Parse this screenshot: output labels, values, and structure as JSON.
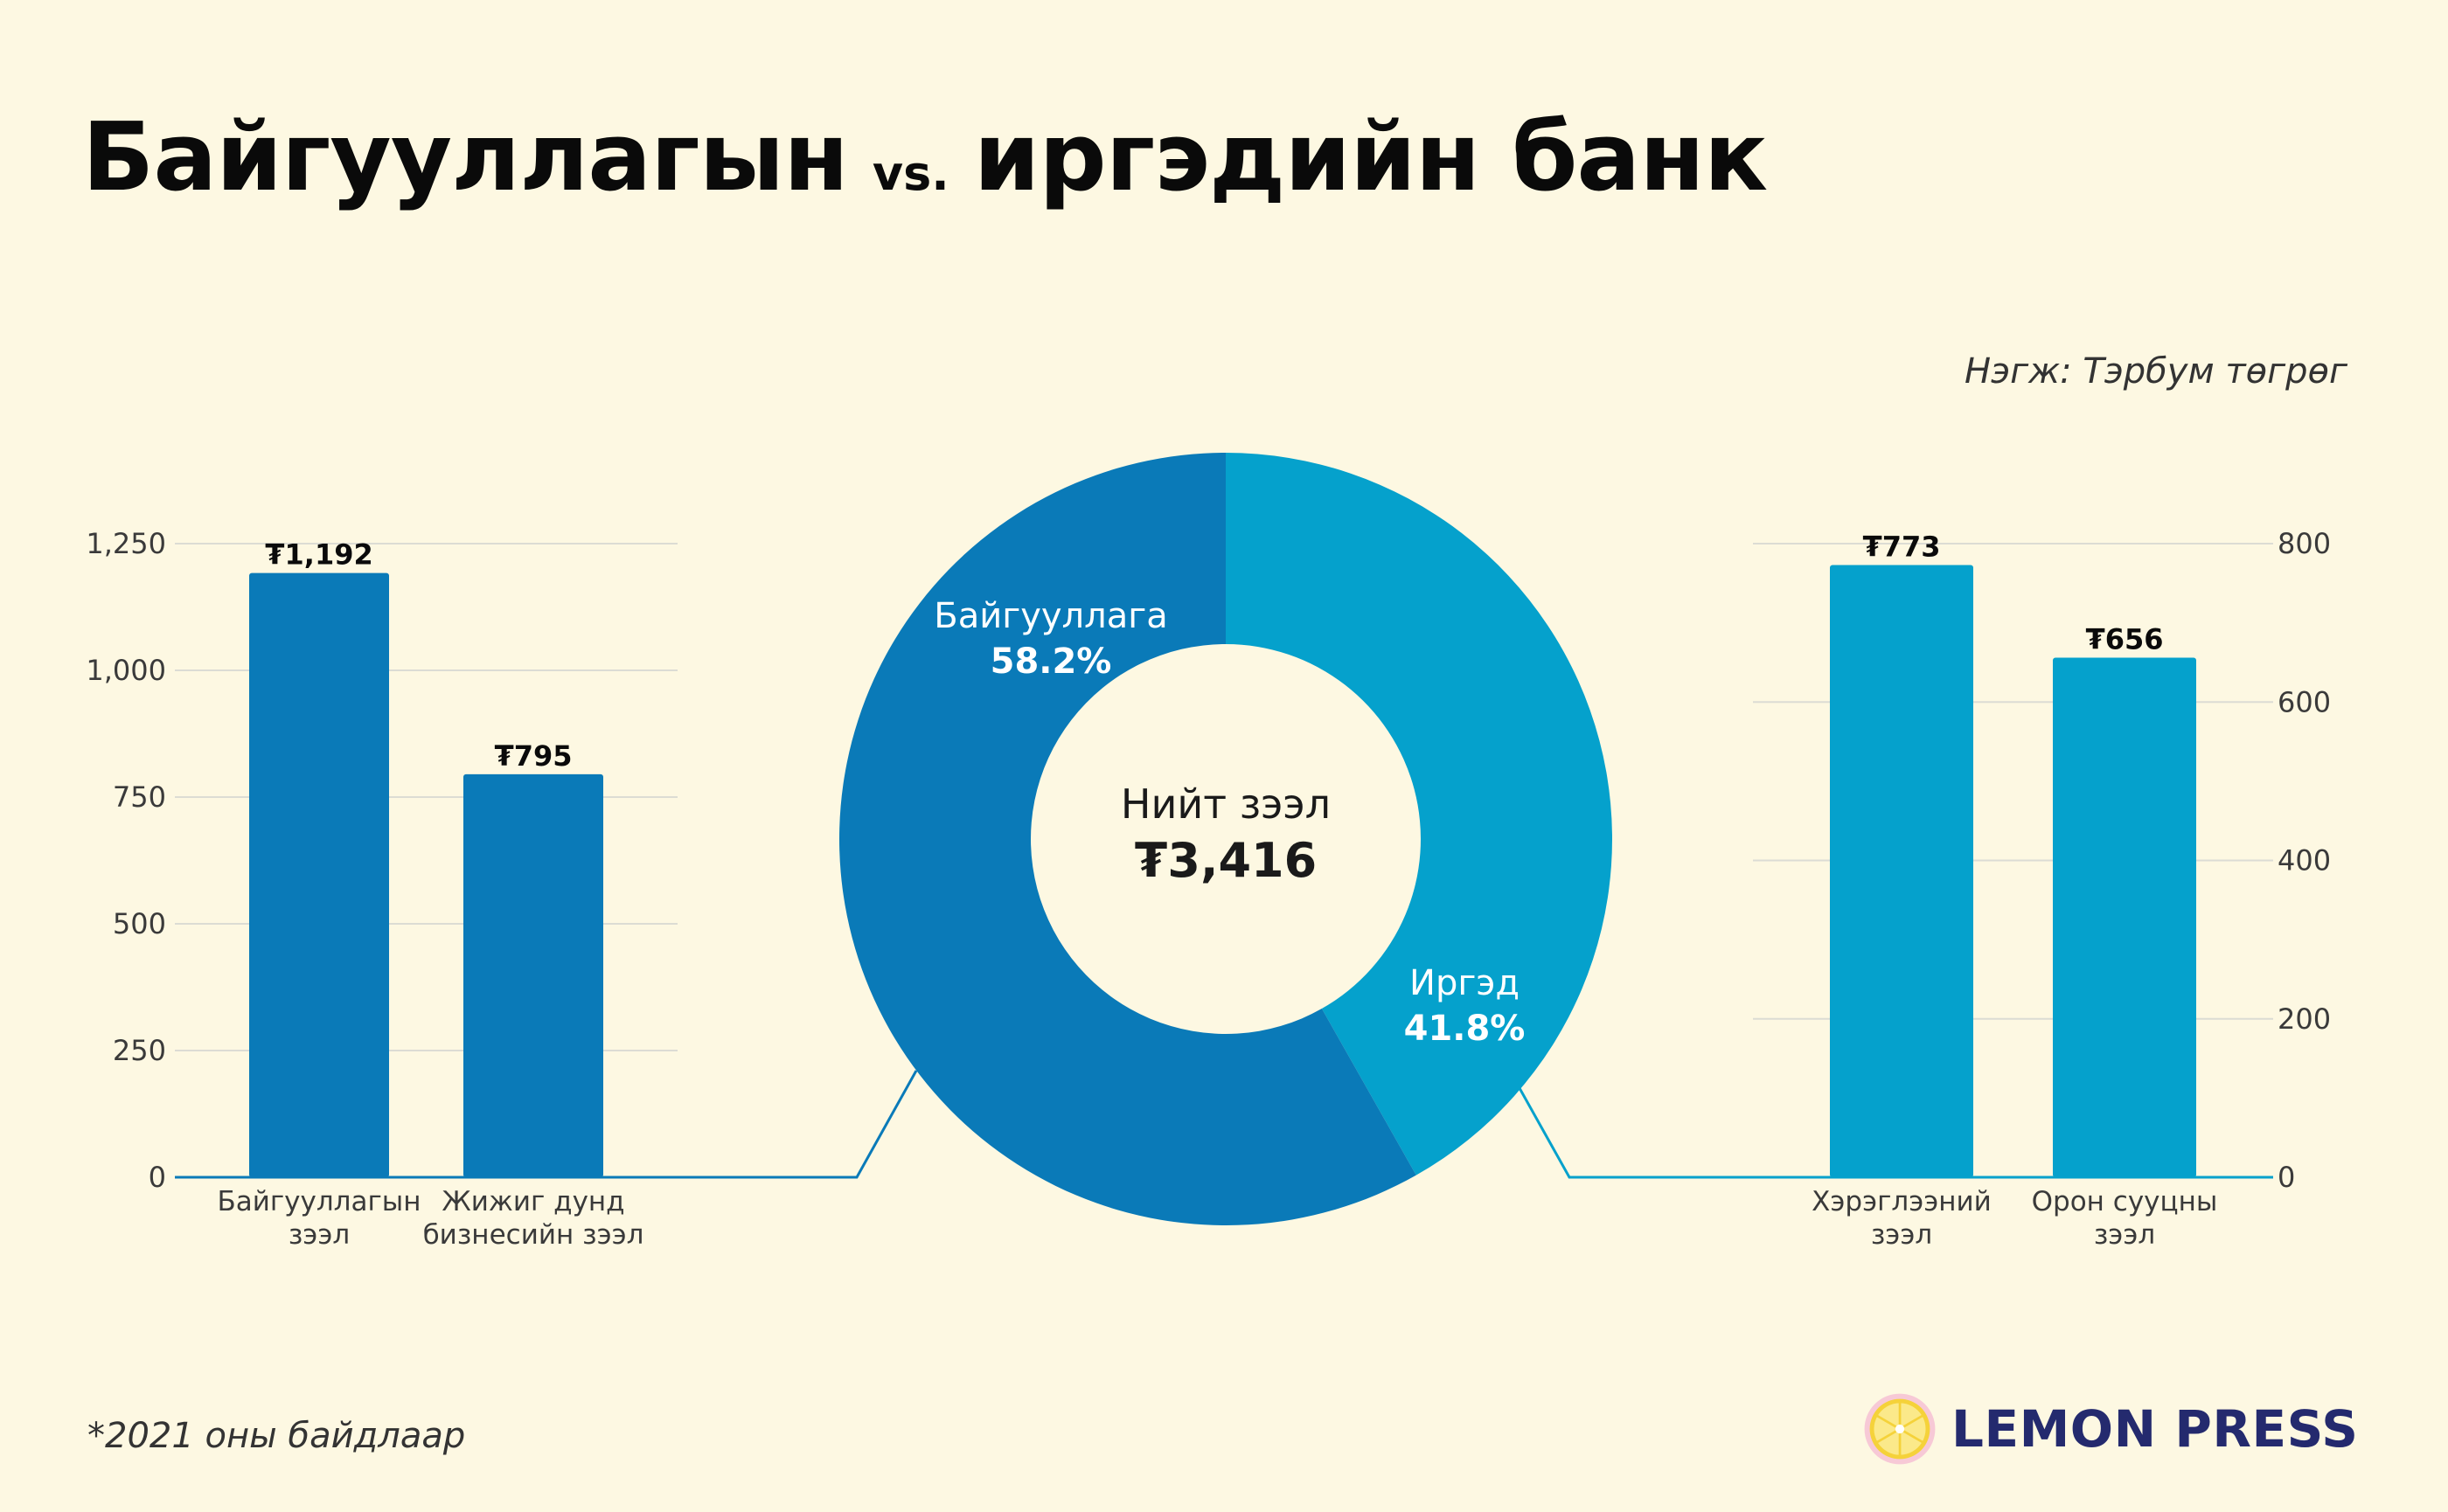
{
  "title": {
    "part1": "Байгууллагын",
    "vs": "vs.",
    "part2": "иргэдийн банк"
  },
  "unit_note": "Нэгж: Тэрбум төгрөг",
  "footnote": "*2021 оны байдлаар",
  "brand": {
    "name": "LEMON PRESS",
    "logo_icon": "lemon-slice-icon"
  },
  "colors": {
    "background": "#fdf8e2",
    "corporate": "#0a7ab8",
    "individual": "#05a1cc",
    "gridline": "#dcdcd4",
    "brand_text": "#242a6e"
  },
  "chart_data": [
    {
      "type": "bar",
      "id": "corporate",
      "categories": [
        [
          "Байгууллагын",
          "зээл"
        ],
        [
          "Жижиг дунд",
          "бизнесийн зээл"
        ]
      ],
      "values": [
        1192,
        795
      ],
      "value_labels": [
        "₮1,192",
        "₮795"
      ],
      "yticks": [
        "0",
        "250",
        "500",
        "750",
        "1,000",
        "1,250"
      ],
      "ylim": [
        0,
        1250
      ],
      "axis_side": "left",
      "color": "#0a7ab8",
      "grid": true
    },
    {
      "type": "pie",
      "id": "total",
      "style": "donut",
      "center_label": "Нийт зээл",
      "center_value": "₮3,416",
      "slices": [
        {
          "name": "Байгууллага",
          "percent_label": "58.2%",
          "value": 58.2,
          "color": "#0a7ab8"
        },
        {
          "name": "Иргэд",
          "percent_label": "41.8%",
          "value": 41.8,
          "color": "#05a1cc"
        }
      ]
    },
    {
      "type": "bar",
      "id": "individual",
      "categories": [
        [
          "Хэрэглээний",
          "зээл"
        ],
        [
          "Орон сууцны",
          "зээл"
        ]
      ],
      "values": [
        773,
        656
      ],
      "value_labels": [
        "₮773",
        "₮656"
      ],
      "yticks": [
        "0",
        "200",
        "400",
        "600",
        "800"
      ],
      "ylim": [
        0,
        800
      ],
      "axis_side": "right",
      "color": "#05a1cc",
      "grid": true
    }
  ]
}
